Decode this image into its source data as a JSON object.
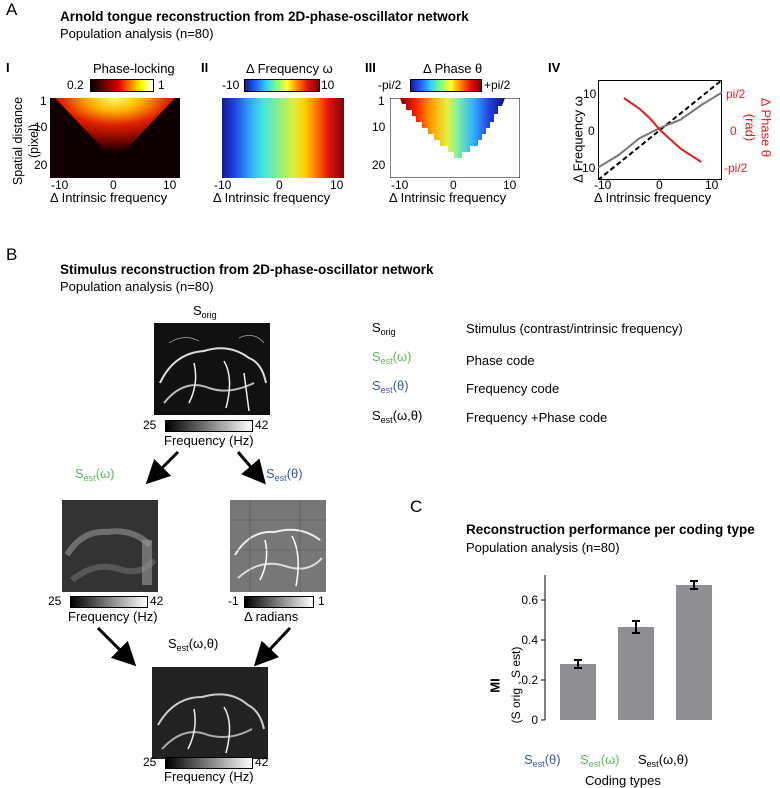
{
  "panelA": {
    "letter": "A",
    "title": "Arnold tongue reconstruction from 2D-phase-oscillator network",
    "subtitle": "Population analysis (n=80)",
    "subpanels": {
      "I": {
        "numeral": "I",
        "cbar_label": "Phase-locking",
        "cbar_min": "0.2",
        "cbar_max": "1"
      },
      "II": {
        "numeral": "II",
        "cbar_label": "Δ Frequency ω",
        "cbar_min": "-10",
        "cbar_max": "10"
      },
      "III": {
        "numeral": "III",
        "cbar_label": "Δ Phase θ",
        "cbar_min": "-pi/2",
        "cbar_max": "+pi/2"
      },
      "IV": {
        "numeral": "IV",
        "y_left_label": "Δ Frequency ω",
        "y_right_label_1": "Δ Phase θ",
        "y_right_label_2": "(rad)",
        "y_left_ticks": [
          "10",
          "0",
          "-10"
        ],
        "y_right_ticks": [
          "pi/2",
          "0",
          "-pi/2"
        ]
      }
    },
    "ylabel_line1": "Spatial distance",
    "ylabel_line2": "(pixel)",
    "yticks": [
      "1",
      "10",
      "20"
    ],
    "xticks": [
      "-10",
      "0",
      "10"
    ],
    "xlabel": "Δ Intrinsic frequency"
  },
  "panelB": {
    "letter": "B",
    "title": "Stimulus reconstruction from 2D-phase-oscillator network",
    "subtitle": "Population analysis (n=80)",
    "s_orig": "S",
    "s_orig_sub": "orig",
    "s_est": "S",
    "s_est_sub": "est",
    "omega_arg": "(ω)",
    "theta_arg": "(θ)",
    "both_arg": "(ω,θ)",
    "cbar_freq_min": "25",
    "cbar_freq_max": "42",
    "cbar_freq_label": "Frequency (Hz)",
    "cbar_rad_min": "-1",
    "cbar_rad_max": "1",
    "cbar_rad_label": "Δ radians",
    "legend": [
      {
        "desc": "Stimulus (contrast/intrinsic frequency)"
      },
      {
        "desc": "Phase  code"
      },
      {
        "desc": "Frequency  code"
      },
      {
        "desc": "Frequency +Phase code"
      }
    ]
  },
  "panelC": {
    "letter": "C",
    "title": "Reconstruction performance per coding type",
    "subtitle": "Population analysis (n=80)",
    "ylabel_main": "MI",
    "ylabel_sub": "(S orig , S est)",
    "xlabel": "Coding types",
    "colors": {
      "bar": "#8e8e93",
      "green": "#5cb85c",
      "blue": "#3a5ba8"
    }
  },
  "chart_data": [
    {
      "type": "bar",
      "categories": [
        "Sest(θ)",
        "Sest(ω)",
        "Sest(ω,θ)"
      ],
      "values": [
        0.28,
        0.465,
        0.675
      ],
      "errors": [
        0.02,
        0.03,
        0.02
      ],
      "ylim": [
        0,
        0.7
      ],
      "yticks": [
        "0",
        "0.2",
        "0.4",
        "0.6"
      ],
      "xlabel": "Coding types",
      "ylabel": "MI (S orig , S est)"
    },
    {
      "type": "line",
      "xlim": [
        -12,
        12
      ],
      "xticks": [
        "-10",
        "0",
        "10"
      ],
      "series": [
        {
          "x": [
            -12,
            -8,
            -4,
            0,
            4,
            8,
            12
          ],
          "y": [
            -9,
            -6,
            -2,
            0.5,
            2.5,
            6,
            9
          ]
        },
        {
          "x": [
            -12,
            12
          ],
          "y": [
            -12,
            12
          ]
        },
        {
          "x": [
            -7,
            -4,
            -2,
            0,
            2,
            4,
            8
          ],
          "y": [
            1.2,
            0.8,
            0.45,
            0,
            -0.35,
            -0.7,
            -1.2
          ]
        }
      ]
    }
  ]
}
